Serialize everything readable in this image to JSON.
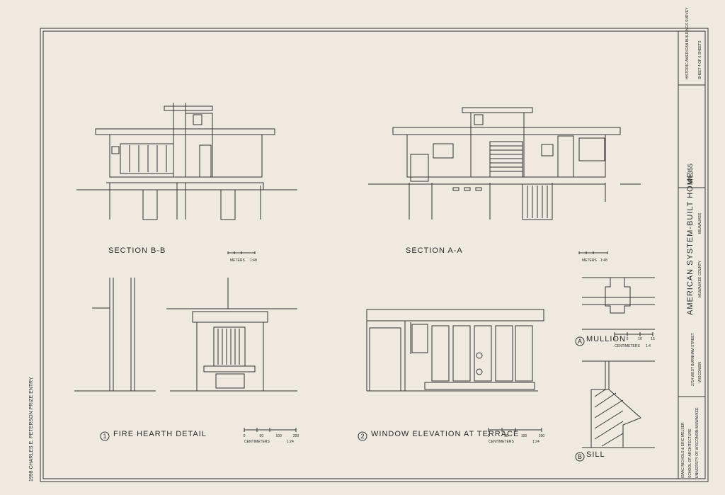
{
  "sheet": {
    "sections": [
      {
        "label": "SECTION  B-B",
        "unit": "METERS",
        "ratio": "1:48"
      },
      {
        "label": "SECTION  A-A",
        "unit": "METERS",
        "ratio": "1:48"
      }
    ],
    "details": [
      {
        "number": "1",
        "label": "FIRE HEARTH DETAIL",
        "unit": "CENTIMETERS",
        "ratio": "1:24",
        "ticks": [
          "0",
          "50",
          "100",
          "200"
        ]
      },
      {
        "number": "2",
        "label": "WINDOW ELEVATION AT TERRACE",
        "unit": "CENTIMETERS",
        "ratio": "1:24",
        "ticks": [
          "0",
          "50",
          "100",
          "200"
        ]
      },
      {
        "number": "A",
        "label": "MULLION",
        "unit": "CENTIMETERS",
        "ratio": "1:4",
        "ticks": [
          "0",
          "5",
          "10",
          "15"
        ]
      },
      {
        "number": "B",
        "label": "SILL"
      }
    ],
    "title_block": {
      "survey": "HISTORIC AMERICAN BUILDINGS SURVEY",
      "sheet": "SHEET 4 OF 6 SHEETS",
      "number": "WI-355",
      "title": "AMERICAN SYSTEM-BUILT HOME",
      "city": "MILWAUKEE",
      "county": "MILWAUKEE COUNTY",
      "state": "WISCONSIN",
      "address": "2714 WEST BURNHAM STREET",
      "drawn_by": "ISAAC NICHOLS & ERIC MELSER",
      "school": "SCHOOL OF ARCHITECTURE",
      "university": "UNIVERSITY OF WISCONSIN-MILWAUKEE"
    },
    "prize": "1998 CHARLES E. PETERSON PRIZE ENTRY."
  }
}
